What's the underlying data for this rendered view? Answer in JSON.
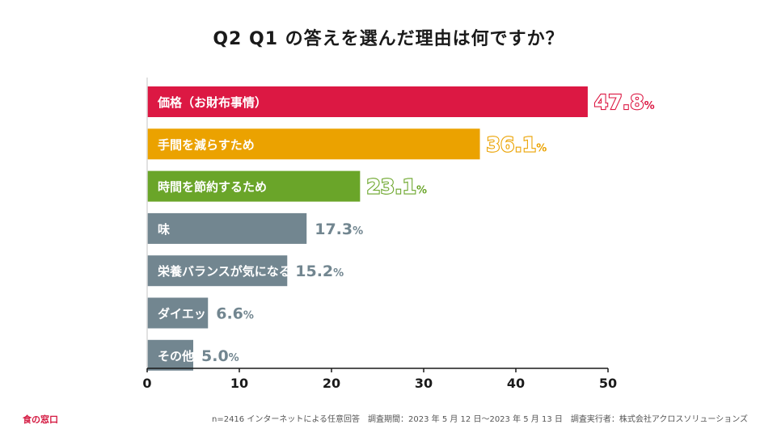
{
  "chart_data": {
    "type": "bar",
    "orientation": "horizontal",
    "title": "Q2 Q1 の答えを選んだ理由は何ですか？",
    "categories": [
      "価格（お財布事情）",
      "手間を減らすため",
      "時間を節約するため",
      "味",
      "栄養バランスが気になるため",
      "ダイエットをしているため",
      "その他"
    ],
    "values": [
      47.8,
      36.1,
      23.1,
      17.3,
      15.2,
      6.6,
      5.0
    ],
    "value_labels": [
      "47.8",
      "36.1",
      "23.1",
      "17.3",
      "15.2",
      "6.6",
      "5.0"
    ],
    "unit": "%",
    "colors": [
      "#dc1843",
      "#eba200",
      "#6aa529",
      "#728690",
      "#728690",
      "#728690",
      "#728690"
    ],
    "xlim": [
      0,
      50
    ],
    "xticks": [
      0,
      10,
      20,
      30,
      40,
      50
    ],
    "xlabel": "",
    "ylabel": "",
    "grid": false,
    "legend": "none"
  },
  "brand": "食の窓口",
  "footnote": "n=2416 インターネットによる任意回答　調査期間：2023 年 5 月 12 日〜2023 年 5 月 13 日　調査実行者：株式会社アクロスソリューションズ"
}
